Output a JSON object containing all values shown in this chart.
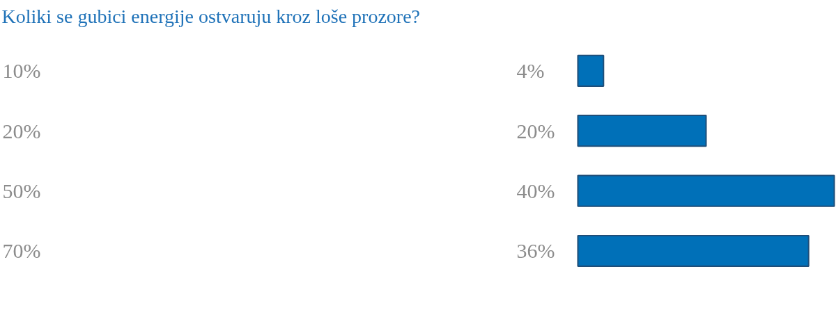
{
  "chart_data": {
    "type": "bar",
    "orientation": "horizontal",
    "title": "Koliki se gubici energije ostvaruju kroz loše prozore?",
    "categories": [
      "10%",
      "20%",
      "50%",
      "70%"
    ],
    "values": [
      4,
      20,
      40,
      36
    ],
    "value_labels": [
      "4%",
      "20%",
      "40%",
      "36%"
    ],
    "color": "#0070b8"
  }
}
